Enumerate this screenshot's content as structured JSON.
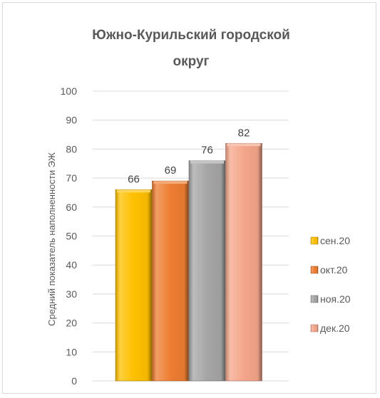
{
  "chart_data": {
    "type": "bar",
    "title_lines": [
      "Южно-Курильский городской",
      "округ"
    ],
    "ylabel": "Средний показатель наполненности ЭЖ",
    "ylim": [
      0,
      100
    ],
    "yticks": [
      "0",
      "10",
      "20",
      "30",
      "40",
      "50",
      "60",
      "70",
      "80",
      "90",
      "100"
    ],
    "grid": true,
    "legend_position": "right",
    "series": [
      {
        "name": "сен.20",
        "value": 66,
        "label": "66",
        "color": "#FFC000"
      },
      {
        "name": "окт.20",
        "value": 69,
        "label": "69",
        "color": "#ED7D31"
      },
      {
        "name": "ноя.20",
        "value": 76,
        "label": "76",
        "color": "#A5A5A5"
      },
      {
        "name": "дек.20",
        "value": 82,
        "label": "82",
        "color": "#F4A58A"
      }
    ]
  }
}
